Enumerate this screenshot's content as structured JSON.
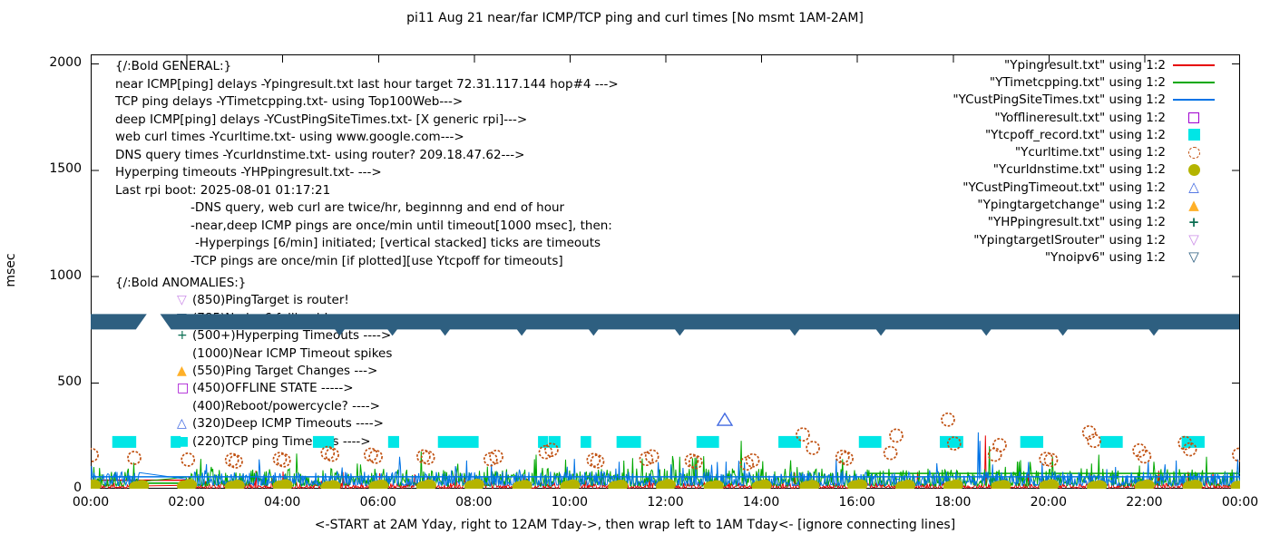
{
  "title": "pi11 Aug 21  near/far ICMP/TCP ping and curl times [No msmt 1AM-2AM]",
  "xlabel": "<-START at 2AM Yday, right to 12AM Tday->, then wrap left to 1AM Tday<- [ignore connecting lines]",
  "ylabel": "msec",
  "axes": {
    "ylim": [
      0,
      2050
    ],
    "yticks": [
      0,
      500,
      1000,
      1500,
      2000
    ],
    "xlim_hours": [
      0,
      24
    ],
    "xticks": [
      {
        "h": 0,
        "label": "00:00"
      },
      {
        "h": 2,
        "label": "02:00"
      },
      {
        "h": 4,
        "label": "04:00"
      },
      {
        "h": 6,
        "label": "06:00"
      },
      {
        "h": 8,
        "label": "08:00"
      },
      {
        "h": 10,
        "label": "10:00"
      },
      {
        "h": 12,
        "label": "12:00"
      },
      {
        "h": 14,
        "label": "14:00"
      },
      {
        "h": 16,
        "label": "16:00"
      },
      {
        "h": 18,
        "label": "18:00"
      },
      {
        "h": 20,
        "label": "20:00"
      },
      {
        "h": 22,
        "label": "22:00"
      },
      {
        "h": 24,
        "label": "00:00"
      }
    ]
  },
  "general_lines": [
    {
      "text": "{/:Bold GENERAL:}",
      "indent": 0
    },
    {
      "text": "near ICMP[ping] delays -Ypingresult.txt last hour target 72.31.117.144 hop#4 --->",
      "indent": 0
    },
    {
      "text": "TCP ping delays -YTimetcpping.txt- using Top100Web--->",
      "indent": 0
    },
    {
      "text": "deep ICMP[ping] delays -YCustPingSiteTimes.txt- [X generic rpi]--->",
      "indent": 0
    },
    {
      "text": "web curl times -Ycurltime.txt- using www.google.com--->",
      "indent": 0
    },
    {
      "text": "DNS query times -Ycurldnstime.txt- using router? 209.18.47.62--->",
      "indent": 0
    },
    {
      "text": "Hyperping timeouts -YHPpingresult.txt- --->",
      "indent": 0
    },
    {
      "text": "Last rpi boot: 2025-08-01 01:17:21",
      "indent": 0
    },
    {
      "text": "-DNS query, web curl are twice/hr, beginnng and end of hour",
      "indent": 83
    },
    {
      "text": "-near,deep ICMP pings are once/min until timeout[1000 msec], then:",
      "indent": 83
    },
    {
      "text": "-Hyperpings [6/min] initiated; [vertical stacked] ticks are timeouts",
      "indent": 88
    },
    {
      "text": "-TCP pings are once/min [if plotted][use Ytcpoff for timeouts]",
      "indent": 83
    }
  ],
  "anomalies": {
    "header": "{/:Bold ANOMALIES:}",
    "items": [
      {
        "marker": "open-down-triangle",
        "color": "#cc8fe8",
        "text": "(850)PingTarget is router!"
      },
      {
        "marker": "open-down-triangle",
        "color": "#2e5f80",
        "text": "(785)No ipv6 fallback!"
      },
      {
        "marker": "plus",
        "color": "#0a6e52",
        "text": "(500+)Hyperping Timeouts ---->"
      },
      {
        "marker": "none",
        "color": "#000000",
        "text": "(1000)Near ICMP Timeout spikes"
      },
      {
        "marker": "filled-triangle",
        "color": "#ffb028",
        "text": "(550)Ping Target Changes --->"
      },
      {
        "marker": "open-square",
        "color": "#a000d0",
        "text": "(450)OFFLINE STATE ----->"
      },
      {
        "marker": "none",
        "color": "#000000",
        "text": "(400)Reboot/powercycle? ---->"
      },
      {
        "marker": "open-triangle",
        "color": "#4169e1",
        "text": "(320)Deep ICMP Timeouts ---->"
      },
      {
        "marker": "filled-square",
        "color": "#00e6e6",
        "text": "(220)TCP ping Timeouts ---->"
      }
    ]
  },
  "legend": [
    {
      "label": "\"Ypingresult.txt\" using 1:2",
      "marker": "line",
      "color": "#e60000"
    },
    {
      "label": "\"YTimetcpping.txt\" using 1:2",
      "marker": "line",
      "color": "#00a800"
    },
    {
      "label": "\"YCustPingSiteTimes.txt\" using 1:2",
      "marker": "line",
      "color": "#0073e6"
    },
    {
      "label": "\"Yofflineresult.txt\" using 1:2",
      "marker": "open-square",
      "color": "#a000d0"
    },
    {
      "label": "\"Ytcpoff_record.txt\" using 1:2",
      "marker": "filled-square",
      "color": "#00e6e6"
    },
    {
      "label": "\"Ycurltime.txt\" using 1:2",
      "marker": "open-circle",
      "color": "#c05010"
    },
    {
      "label": "\"Ycurldnstime.txt\" using 1:2",
      "marker": "filled-circle",
      "color": "#b4b400"
    },
    {
      "label": "\"YCustPingTimeout.txt\" using 1:2",
      "marker": "open-triangle",
      "color": "#4169e1"
    },
    {
      "label": "\"Ypingtargetchange\" using 1:2",
      "marker": "filled-triangle",
      "color": "#ffb028"
    },
    {
      "label": "\"YHPpingresult.txt\" using 1:2",
      "marker": "plus",
      "color": "#0a6e52"
    },
    {
      "label": "\"YpingtargetISrouter\" using 1:2",
      "marker": "open-down-triangle",
      "color": "#cc8fe8"
    },
    {
      "label": "\"Ynoipv6\" using 1:2",
      "marker": "open-down-triangle",
      "color": "#2e5f80"
    }
  ],
  "chart_data": {
    "type": "line",
    "x_unit": "hours 0-24 (time of day)",
    "y_unit": "msec",
    "no_measurement_gap_hours": [
      1.03,
      1.97
    ],
    "series": [
      {
        "name": "Ypingresult.txt",
        "style": "line",
        "color": "#e60000",
        "seed": 11,
        "noise_band": [
          3,
          28
        ],
        "const_segments": [
          [
            0,
            2.05,
            40
          ]
        ],
        "spikes": [
          [
            18.69,
            250
          ]
        ]
      },
      {
        "name": "YTimetcpping.txt",
        "style": "line",
        "color": "#00a800",
        "seed": 22,
        "noise_band": [
          12,
          95
        ],
        "const_segments": [
          [
            0.95,
            2.05,
            26
          ],
          [
            16.2,
            24,
            72
          ]
        ],
        "spikes": [
          [
            2.3,
            140
          ],
          [
            4.3,
            165
          ],
          [
            6.9,
            175
          ],
          [
            9.3,
            160
          ],
          [
            12.3,
            150
          ],
          [
            13.58,
            225
          ],
          [
            18.77,
            200
          ],
          [
            21.05,
            160
          ],
          [
            23.3,
            150
          ]
        ]
      },
      {
        "name": "YCustPingSiteTimes.txt",
        "style": "line",
        "color": "#0073e6",
        "seed": 33,
        "noise_band": [
          15,
          80
        ],
        "const_segments": [
          [
            0,
            24,
            56
          ]
        ],
        "spikes": [
          [
            6.45,
            150
          ],
          [
            10.1,
            140
          ],
          [
            18.53,
            265
          ],
          [
            18.57,
            225
          ]
        ]
      },
      {
        "name": "Yofflineresult.txt",
        "style": "open-square",
        "color": "#a000d0",
        "points": []
      },
      {
        "name": "Ytcpoff_record.txt",
        "style": "filled-square",
        "color": "#00e6e6",
        "value": 220,
        "blocks_hours": [
          [
            0.45,
            0.95
          ],
          [
            1.67,
            1.86
          ],
          [
            4.64,
            5.08
          ],
          [
            6.21,
            6.44
          ],
          [
            7.25,
            8.1
          ],
          [
            9.34,
            9.53
          ],
          [
            9.56,
            9.81
          ],
          [
            10.23,
            10.45
          ],
          [
            10.98,
            11.49
          ],
          [
            12.65,
            13.12
          ],
          [
            14.36,
            14.83
          ],
          [
            16.04,
            16.51
          ],
          [
            17.73,
            18.22
          ],
          [
            19.41,
            19.89
          ],
          [
            21.08,
            21.55
          ],
          [
            22.78,
            23.26
          ]
        ]
      },
      {
        "name": "Ycurltime.txt",
        "style": "open-circle",
        "color": "#c05010",
        "points": [
          [
            0.02,
            158
          ],
          [
            0.91,
            145
          ],
          [
            2.03,
            137
          ],
          [
            2.95,
            135
          ],
          [
            3.03,
            128
          ],
          [
            3.95,
            140
          ],
          [
            4.03,
            133
          ],
          [
            4.95,
            168
          ],
          [
            5.04,
            160
          ],
          [
            5.85,
            160
          ],
          [
            5.95,
            150
          ],
          [
            6.95,
            152
          ],
          [
            7.04,
            146
          ],
          [
            8.35,
            138
          ],
          [
            8.47,
            150
          ],
          [
            9.5,
            172
          ],
          [
            9.62,
            183
          ],
          [
            10.5,
            135
          ],
          [
            10.58,
            128
          ],
          [
            11.6,
            140
          ],
          [
            11.72,
            152
          ],
          [
            12.55,
            132
          ],
          [
            12.63,
            125
          ],
          [
            13.7,
            118
          ],
          [
            13.82,
            133
          ],
          [
            14.87,
            255
          ],
          [
            15.08,
            192
          ],
          [
            15.7,
            150
          ],
          [
            15.78,
            142
          ],
          [
            16.7,
            168
          ],
          [
            16.82,
            250
          ],
          [
            17.9,
            325
          ],
          [
            18.03,
            213
          ],
          [
            18.88,
            160
          ],
          [
            18.98,
            205
          ],
          [
            19.95,
            140
          ],
          [
            20.05,
            135
          ],
          [
            20.85,
            265
          ],
          [
            20.95,
            225
          ],
          [
            21.9,
            180
          ],
          [
            22.0,
            152
          ],
          [
            22.85,
            215
          ],
          [
            22.95,
            185
          ],
          [
            23.98,
            160
          ]
        ]
      },
      {
        "name": "Ycurldnstime.txt",
        "style": "filled-circle",
        "color": "#b4b400",
        "hourly_pairs": [
          [
            0,
            10,
            16
          ],
          [
            1,
            8,
            14
          ],
          [
            2,
            12,
            18
          ],
          [
            3,
            9,
            15
          ],
          [
            4,
            11,
            17
          ],
          [
            5,
            8,
            13
          ],
          [
            6,
            10,
            15
          ],
          [
            7,
            9,
            16
          ],
          [
            8,
            12,
            19
          ],
          [
            9,
            8,
            14
          ],
          [
            10,
            10,
            16
          ],
          [
            11,
            9,
            15
          ],
          [
            12,
            11,
            18
          ],
          [
            13,
            8,
            13
          ],
          [
            14,
            10,
            16
          ],
          [
            15,
            9,
            14
          ],
          [
            16,
            12,
            17
          ],
          [
            17,
            8,
            15
          ],
          [
            18,
            10,
            16
          ],
          [
            19,
            9,
            14
          ],
          [
            20,
            11,
            17
          ],
          [
            21,
            8,
            13
          ],
          [
            22,
            10,
            16
          ],
          [
            23,
            9,
            15
          ],
          [
            24,
            10,
            14
          ]
        ]
      },
      {
        "name": "YCustPingTimeout.txt",
        "style": "open-triangle",
        "color": "#4169e1",
        "points": [
          [
            13.24,
            324
          ]
        ]
      },
      {
        "name": "Ypingtargetchange",
        "style": "filled-triangle",
        "color": "#ffb028",
        "points": []
      },
      {
        "name": "YHPpingresult.txt",
        "style": "plus",
        "color": "#0a6e52",
        "points": []
      },
      {
        "name": "YpingtargetISrouter",
        "style": "open-down-triangle",
        "color": "#cc8fe8",
        "points": []
      },
      {
        "name": "Ynoipv6",
        "style": "open-down-triangle",
        "color": "#2e5f80",
        "band_value": 785,
        "band_segments_hours": [
          [
            0,
            1.17
          ],
          [
            1.45,
            24
          ]
        ],
        "teeth_hours": [
          5.2,
          6.3,
          7.4,
          9.0,
          10.5,
          12.3,
          14.7,
          16.5,
          18.7,
          20.3,
          22.2
        ]
      }
    ]
  }
}
